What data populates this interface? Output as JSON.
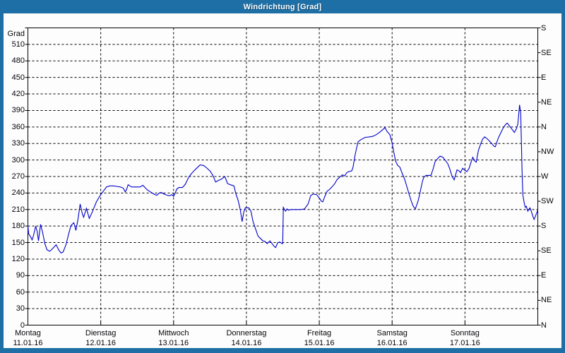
{
  "window": {
    "title": "Windrichtung [Grad]"
  },
  "colors": {
    "frame": "#1d6fa5",
    "title_text": "#ffffff",
    "plot_background": "#fdfdfd",
    "grid": "#000000",
    "axis_text": "#05050a",
    "series_line": "#0000cc"
  },
  "chart_data": {
    "type": "line",
    "title": "Windrichtung [Grad]",
    "grid": "dashed",
    "y_axis": {
      "title": "Grad",
      "min": 0,
      "max": 540,
      "tick_step": 30,
      "tick_values": [
        0,
        30,
        60,
        90,
        120,
        150,
        180,
        210,
        240,
        270,
        300,
        330,
        360,
        390,
        420,
        450,
        480,
        510
      ],
      "tick_labels": [
        "0",
        "30",
        "60",
        "90",
        "120",
        "150",
        "180",
        "210",
        "240",
        "270",
        "300",
        "330",
        "360",
        "390",
        "420",
        "450",
        "480",
        "510"
      ]
    },
    "right_axis": {
      "tick_step": 45,
      "ticks": [
        {
          "value": 540,
          "label": "S"
        },
        {
          "value": 495,
          "label": "SE"
        },
        {
          "value": 450,
          "label": "E"
        },
        {
          "value": 405,
          "label": "NE"
        },
        {
          "value": 360,
          "label": "N"
        },
        {
          "value": 315,
          "label": "NW"
        },
        {
          "value": 270,
          "label": "W"
        },
        {
          "value": 225,
          "label": "SW"
        },
        {
          "value": 180,
          "label": "S"
        },
        {
          "value": 135,
          "label": "SE"
        },
        {
          "value": 90,
          "label": "E"
        },
        {
          "value": 45,
          "label": "NE"
        },
        {
          "value": 0,
          "label": "N"
        }
      ]
    },
    "x_axis": {
      "span_days": 7,
      "days": [
        {
          "weekday": "Montag",
          "date": "11.01.16"
        },
        {
          "weekday": "Dienstag",
          "date": "12.01.16"
        },
        {
          "weekday": "Mittwoch",
          "date": "13.01.16"
        },
        {
          "weekday": "Donnerstag",
          "date": "14.01.16"
        },
        {
          "weekday": "Freitag",
          "date": "15.01.16"
        },
        {
          "weekday": "Samstag",
          "date": "16.01.16"
        },
        {
          "weekday": "Sonntag",
          "date": "17.01.16"
        }
      ]
    },
    "series": [
      {
        "name": "Windrichtung",
        "color": "#0000cc",
        "points": [
          [
            0,
            181
          ],
          [
            0.01,
            166
          ],
          [
            0.03,
            162
          ],
          [
            0.058,
            155
          ],
          [
            0.078,
            163
          ],
          [
            0.107,
            180
          ],
          [
            0.126,
            171
          ],
          [
            0.145,
            153
          ],
          [
            0.174,
            183
          ],
          [
            0.203,
            168
          ],
          [
            0.233,
            148
          ],
          [
            0.262,
            137
          ],
          [
            0.3,
            134
          ],
          [
            0.339,
            139
          ],
          [
            0.388,
            146
          ],
          [
            0.426,
            136
          ],
          [
            0.455,
            131
          ],
          [
            0.484,
            133
          ],
          [
            0.523,
            146
          ],
          [
            0.562,
            167
          ],
          [
            0.591,
            181
          ],
          [
            0.63,
            186
          ],
          [
            0.659,
            172
          ],
          [
            0.688,
            193
          ],
          [
            0.717,
            220
          ],
          [
            0.746,
            203
          ],
          [
            0.765,
            196
          ],
          [
            0.804,
            212
          ],
          [
            0.843,
            194
          ],
          [
            0.882,
            205
          ],
          [
            0.94,
            224
          ],
          [
            1,
            237
          ],
          [
            1.039,
            244
          ],
          [
            1.078,
            251
          ],
          [
            1.124,
            253
          ],
          [
            1.172,
            253
          ],
          [
            1.221,
            252
          ],
          [
            1.269,
            251
          ],
          [
            1.308,
            249
          ],
          [
            1.337,
            242
          ],
          [
            1.356,
            247
          ],
          [
            1.376,
            255
          ],
          [
            1.424,
            251
          ],
          [
            1.482,
            251
          ],
          [
            1.54,
            251
          ],
          [
            1.579,
            254
          ],
          [
            1.637,
            246
          ],
          [
            1.705,
            240
          ],
          [
            1.744,
            237
          ],
          [
            1.773,
            236
          ],
          [
            1.802,
            240
          ],
          [
            1.831,
            241
          ],
          [
            1.87,
            238
          ],
          [
            1.909,
            236
          ],
          [
            1.947,
            235
          ],
          [
            1.976,
            237
          ],
          [
            2,
            234
          ],
          [
            2.025,
            241
          ],
          [
            2.044,
            247
          ],
          [
            2.073,
            250
          ],
          [
            2.122,
            250
          ],
          [
            2.161,
            256
          ],
          [
            2.209,
            269
          ],
          [
            2.238,
            274
          ],
          [
            2.277,
            280
          ],
          [
            2.316,
            285
          ],
          [
            2.364,
            291
          ],
          [
            2.412,
            290
          ],
          [
            2.451,
            286
          ],
          [
            2.5,
            280
          ],
          [
            2.539,
            272
          ],
          [
            2.577,
            260
          ],
          [
            2.616,
            263
          ],
          [
            2.655,
            265
          ],
          [
            2.703,
            270
          ],
          [
            2.742,
            257
          ],
          [
            2.781,
            255
          ],
          [
            2.829,
            253
          ],
          [
            2.849,
            241
          ],
          [
            2.887,
            226
          ],
          [
            2.916,
            209
          ],
          [
            2.941,
            188
          ],
          [
            2.965,
            206
          ],
          [
            2.984,
            213
          ],
          [
            3.033,
            213
          ],
          [
            3.062,
            207
          ],
          [
            3.091,
            188
          ],
          [
            3.13,
            173
          ],
          [
            3.159,
            162
          ],
          [
            3.188,
            158
          ],
          [
            3.227,
            153
          ],
          [
            3.256,
            152
          ],
          [
            3.285,
            148
          ],
          [
            3.323,
            153
          ],
          [
            3.352,
            148
          ],
          [
            3.381,
            143
          ],
          [
            3.401,
            141
          ],
          [
            3.43,
            150
          ],
          [
            3.459,
            151
          ],
          [
            3.488,
            148
          ],
          [
            3.498,
            148
          ],
          [
            3.507,
            214
          ],
          [
            3.536,
            207
          ],
          [
            3.556,
            211
          ],
          [
            3.575,
            209
          ],
          [
            3.614,
            210
          ],
          [
            3.672,
            210
          ],
          [
            3.74,
            210
          ],
          [
            3.798,
            211
          ],
          [
            3.846,
            220
          ],
          [
            3.885,
            236
          ],
          [
            3.924,
            238
          ],
          [
            3.963,
            237
          ],
          [
            4,
            231
          ],
          [
            4.029,
            225
          ],
          [
            4.048,
            224
          ],
          [
            4.077,
            234
          ],
          [
            4.106,
            243
          ],
          [
            4.145,
            247
          ],
          [
            4.174,
            251
          ],
          [
            4.213,
            257
          ],
          [
            4.242,
            264
          ],
          [
            4.281,
            269
          ],
          [
            4.319,
            273
          ],
          [
            4.348,
            271
          ],
          [
            4.377,
            277
          ],
          [
            4.406,
            279
          ],
          [
            4.445,
            280
          ],
          [
            4.464,
            287
          ],
          [
            4.493,
            310
          ],
          [
            4.532,
            333
          ],
          [
            4.571,
            337
          ],
          [
            4.629,
            341
          ],
          [
            4.687,
            342
          ],
          [
            4.736,
            343
          ],
          [
            4.784,
            346
          ],
          [
            4.833,
            351
          ],
          [
            4.872,
            355
          ],
          [
            4.901,
            359
          ],
          [
            4.93,
            352
          ],
          [
            4.969,
            346
          ],
          [
            5,
            331
          ],
          [
            5.029,
            310
          ],
          [
            5.048,
            298
          ],
          [
            5.077,
            290
          ],
          [
            5.106,
            287
          ],
          [
            5.135,
            277
          ],
          [
            5.174,
            264
          ],
          [
            5.222,
            243
          ],
          [
            5.261,
            226
          ],
          [
            5.29,
            216
          ],
          [
            5.319,
            211
          ],
          [
            5.358,
            226
          ],
          [
            5.387,
            243
          ],
          [
            5.416,
            261
          ],
          [
            5.436,
            269
          ],
          [
            5.465,
            272
          ],
          [
            5.503,
            272
          ],
          [
            5.532,
            272
          ],
          [
            5.561,
            283
          ],
          [
            5.59,
            297
          ],
          [
            5.629,
            303
          ],
          [
            5.658,
            307
          ],
          [
            5.697,
            305
          ],
          [
            5.726,
            300
          ],
          [
            5.765,
            293
          ],
          [
            5.794,
            283
          ],
          [
            5.823,
            270
          ],
          [
            5.852,
            264
          ],
          [
            5.891,
            282
          ],
          [
            5.92,
            280
          ],
          [
            5.939,
            277
          ],
          [
            5.968,
            285
          ],
          [
            6,
            281
          ],
          [
            6.029,
            279
          ],
          [
            6.058,
            285
          ],
          [
            6.078,
            294
          ],
          [
            6.107,
            305
          ],
          [
            6.136,
            298
          ],
          [
            6.155,
            296
          ],
          [
            6.184,
            317
          ],
          [
            6.213,
            328
          ],
          [
            6.242,
            338
          ],
          [
            6.271,
            342
          ],
          [
            6.31,
            338
          ],
          [
            6.339,
            334
          ],
          [
            6.368,
            330
          ],
          [
            6.397,
            325
          ],
          [
            6.416,
            324
          ],
          [
            6.455,
            339
          ],
          [
            6.494,
            350
          ],
          [
            6.533,
            360
          ],
          [
            6.562,
            365
          ],
          [
            6.581,
            367
          ],
          [
            6.61,
            362
          ],
          [
            6.639,
            357
          ],
          [
            6.678,
            350
          ],
          [
            6.707,
            357
          ],
          [
            6.726,
            365
          ],
          [
            6.75,
            400
          ],
          [
            6.765,
            385
          ],
          [
            6.784,
            280
          ],
          [
            6.794,
            237
          ],
          [
            6.813,
            222
          ],
          [
            6.828,
            214
          ],
          [
            6.842,
            216
          ],
          [
            6.862,
            207
          ],
          [
            6.891,
            213
          ],
          [
            6.905,
            209
          ],
          [
            6.934,
            197
          ],
          [
            6.949,
            192
          ],
          [
            6.968,
            198
          ],
          [
            6.988,
            205
          ],
          [
            7,
            209
          ]
        ]
      }
    ]
  }
}
